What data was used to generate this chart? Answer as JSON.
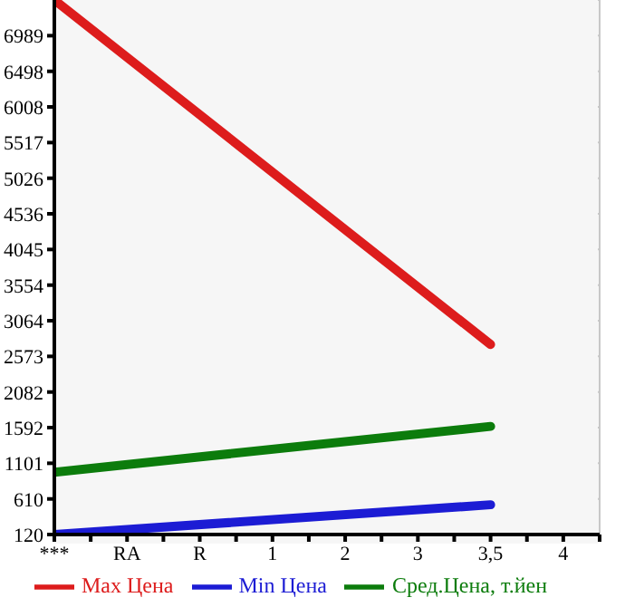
{
  "chart_data": {
    "type": "line",
    "categories": [
      "***",
      "RA",
      "R",
      "1",
      "2",
      "3",
      "3,5",
      "4"
    ],
    "series": [
      {
        "name": "Max Цена",
        "color": "#dd1c1c",
        "values": [
          7480,
          null,
          null,
          null,
          null,
          null,
          2737,
          null
        ]
      },
      {
        "name": "Min Цена",
        "color": "#1c1cd4",
        "values": [
          120,
          null,
          null,
          null,
          null,
          null,
          530,
          null
        ]
      },
      {
        "name": "Сред.Цена, т.йен",
        "color": "#0c7c0c",
        "values": [
          978,
          null,
          null,
          null,
          null,
          null,
          1609,
          null
        ]
      }
    ],
    "ylim": [
      120,
      7480
    ],
    "yticks": [
      120,
      610,
      1101,
      1592,
      2082,
      2573,
      3064,
      3554,
      4045,
      4536,
      5026,
      5517,
      6008,
      6498,
      6989
    ],
    "grid": true,
    "legend": "bottom",
    "marker": "none",
    "line_style": "solid"
  }
}
